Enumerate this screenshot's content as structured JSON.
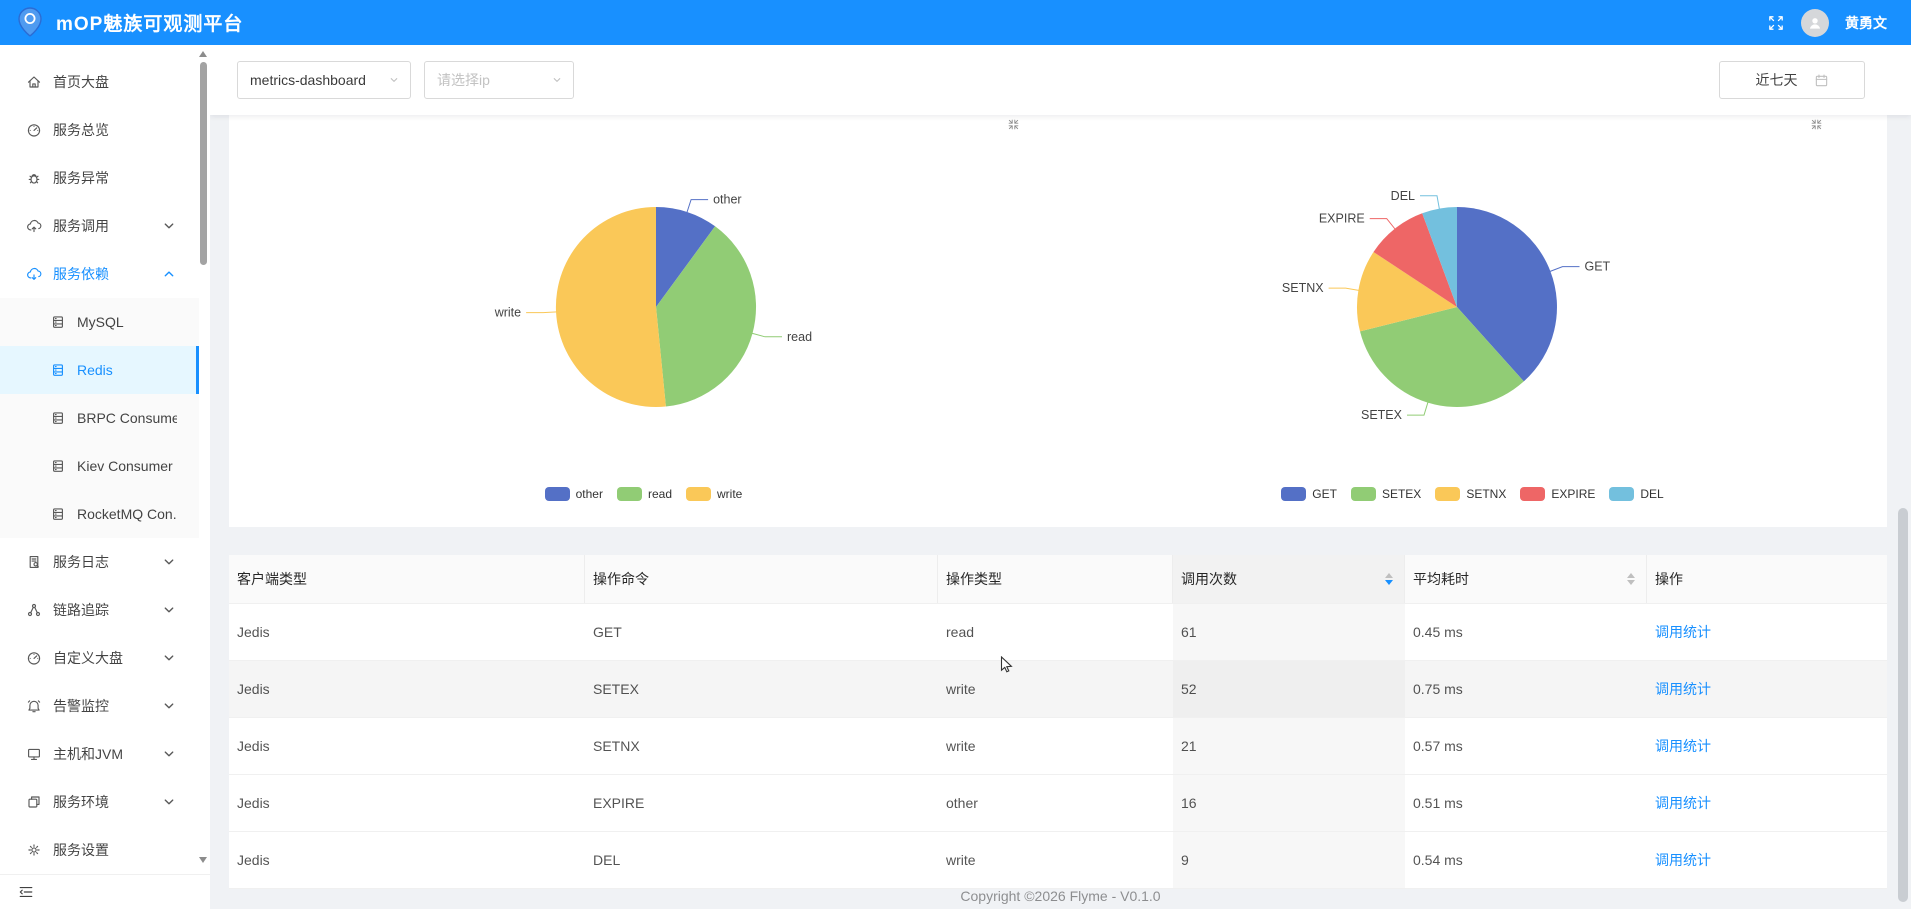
{
  "header": {
    "title": "mOP魅族可观测平台",
    "username": "黄勇文",
    "bg_color": "#1890ff"
  },
  "sidebar": {
    "menu": [
      {
        "key": "home-dashboard",
        "label": "首页大盘",
        "icon": "home"
      },
      {
        "key": "service-overview",
        "label": "服务总览",
        "icon": "gauge"
      },
      {
        "key": "service-exception",
        "label": "服务异常",
        "icon": "bug"
      },
      {
        "key": "service-invoke",
        "label": "服务调用",
        "icon": "cloud-up",
        "chevron": "down"
      },
      {
        "key": "service-dependency",
        "label": "服务依赖",
        "icon": "cloud-down",
        "chevron": "up",
        "active": true
      },
      {
        "key": "mysql",
        "label": "MySQL",
        "icon": "server",
        "sub": true
      },
      {
        "key": "redis",
        "label": "Redis",
        "icon": "server",
        "sub": true,
        "selected": true
      },
      {
        "key": "brpc-consumer",
        "label": "BRPC Consumer",
        "icon": "server",
        "sub": true
      },
      {
        "key": "kiev-consumer",
        "label": "Kiev Consumer",
        "icon": "server",
        "sub": true
      },
      {
        "key": "rocketmq-consumer",
        "label": "RocketMQ Con...",
        "icon": "server",
        "sub": true
      },
      {
        "key": "service-log",
        "label": "服务日志",
        "icon": "file-log",
        "chevron": "down"
      },
      {
        "key": "trace",
        "label": "链路追踪",
        "icon": "trace",
        "chevron": "down"
      },
      {
        "key": "custom-dashboard",
        "label": "自定义大盘",
        "icon": "gauge",
        "chevron": "down"
      },
      {
        "key": "alert-monitor",
        "label": "告警监控",
        "icon": "alarm",
        "chevron": "down"
      },
      {
        "key": "host-jvm",
        "label": "主机和JVM",
        "icon": "monitor",
        "chevron": "down"
      },
      {
        "key": "service-env",
        "label": "服务环境",
        "icon": "env",
        "chevron": "down"
      },
      {
        "key": "service-settings",
        "label": "服务设置",
        "icon": "gear"
      }
    ]
  },
  "toolbar": {
    "service_select": "metrics-dashboard",
    "ip_placeholder": "请选择ip",
    "date_range": "近七天"
  },
  "palette": [
    "#5470c6",
    "#91cc75",
    "#fac858",
    "#ee6666",
    "#73c0de"
  ],
  "chart_data": [
    {
      "type": "pie",
      "legend": [
        "other",
        "read",
        "write"
      ],
      "legend_position": "bottom",
      "slices": [
        {
          "label": "other",
          "value": 16
        },
        {
          "label": "read",
          "value": 61
        },
        {
          "label": "write",
          "value": 82
        }
      ]
    },
    {
      "type": "pie",
      "legend": [
        "GET",
        "SETEX",
        "SETNX",
        "EXPIRE",
        "DEL"
      ],
      "legend_position": "bottom",
      "slices": [
        {
          "label": "GET",
          "value": 61
        },
        {
          "label": "SETEX",
          "value": 52
        },
        {
          "label": "SETNX",
          "value": 21
        },
        {
          "label": "EXPIRE",
          "value": 16
        },
        {
          "label": "DEL",
          "value": 9
        }
      ]
    }
  ],
  "table": {
    "columns": [
      {
        "title": "客户端类型"
      },
      {
        "title": "操作命令"
      },
      {
        "title": "操作类型"
      },
      {
        "title": "调用次数",
        "sorter": true,
        "sorted": "desc"
      },
      {
        "title": "平均耗时",
        "sorter": true
      },
      {
        "title": "操作"
      }
    ],
    "rows": [
      {
        "client": "Jedis",
        "command": "GET",
        "op_type": "read",
        "count": 61,
        "avg_latency": "0.45 ms"
      },
      {
        "client": "Jedis",
        "command": "SETEX",
        "op_type": "write",
        "count": 52,
        "avg_latency": "0.75 ms",
        "hover": true
      },
      {
        "client": "Jedis",
        "command": "SETNX",
        "op_type": "write",
        "count": 21,
        "avg_latency": "0.57 ms"
      },
      {
        "client": "Jedis",
        "command": "EXPIRE",
        "op_type": "other",
        "count": 16,
        "avg_latency": "0.51 ms"
      },
      {
        "client": "Jedis",
        "command": "DEL",
        "op_type": "write",
        "count": 9,
        "avg_latency": "0.54 ms"
      }
    ],
    "action_label": "调用统计"
  },
  "footer": {
    "copyright": "Copyright ©2026 Flyme - V0.1.0"
  }
}
